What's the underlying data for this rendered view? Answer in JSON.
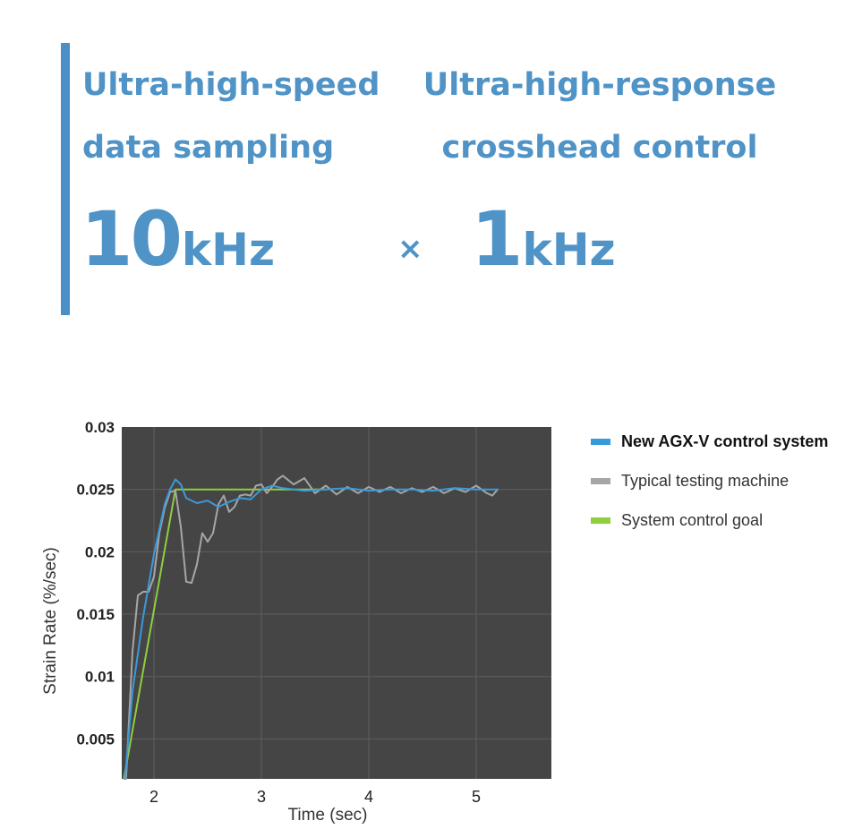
{
  "headline": {
    "left_feature": [
      "Ultra-high-speed",
      "data sampling"
    ],
    "right_feature": [
      "Ultra-high-response",
      "crosshead control"
    ],
    "left_value": {
      "number": "10",
      "unit": "kHz"
    },
    "operator": "×",
    "right_value": {
      "number": "1",
      "unit": "kHz"
    },
    "accent_color": "#4f93c7"
  },
  "chart_data": {
    "type": "line",
    "title": "",
    "xlabel": "Time (sec)",
    "ylabel": "Strain Rate (%/sec)",
    "xlim": [
      1.7,
      5.7
    ],
    "ylim": [
      0.0018,
      0.03
    ],
    "xticks": [
      2,
      3,
      4,
      5
    ],
    "xtick_labels": [
      "2",
      "3",
      "4",
      "5"
    ],
    "yticks": [
      0.005,
      0.01,
      0.015,
      0.02,
      0.025,
      0.03
    ],
    "ytick_labels": [
      "0.005",
      "0.01",
      "0.015",
      "0.02",
      "0.025",
      "0.03"
    ],
    "grid": true,
    "plot_background": "#454545",
    "legend_position": "right",
    "series": [
      {
        "name": "System control goal",
        "color": "#8fce3c",
        "x": [
          1.72,
          2.2,
          3.6
        ],
        "y": [
          0.0018,
          0.025,
          0.025
        ]
      },
      {
        "name": "Typical testing machine",
        "color": "#a6a6a6",
        "x": [
          1.74,
          1.8,
          1.85,
          1.9,
          1.95,
          2.0,
          2.05,
          2.1,
          2.15,
          2.2,
          2.25,
          2.3,
          2.35,
          2.4,
          2.45,
          2.5,
          2.55,
          2.6,
          2.65,
          2.7,
          2.75,
          2.8,
          2.85,
          2.9,
          2.95,
          3.0,
          3.05,
          3.1,
          3.15,
          3.2,
          3.3,
          3.4,
          3.5,
          3.6,
          3.7,
          3.8,
          3.9,
          4.0,
          4.1,
          4.2,
          4.3,
          4.4,
          4.5,
          4.6,
          4.7,
          4.8,
          4.9,
          5.0,
          5.1,
          5.15,
          5.2
        ],
        "y": [
          0.0018,
          0.012,
          0.0165,
          0.0168,
          0.0168,
          0.018,
          0.0215,
          0.0235,
          0.0248,
          0.0249,
          0.022,
          0.0176,
          0.0175,
          0.019,
          0.0215,
          0.0208,
          0.0215,
          0.0238,
          0.0245,
          0.0232,
          0.0236,
          0.0245,
          0.0246,
          0.0245,
          0.0253,
          0.0254,
          0.0247,
          0.0252,
          0.0258,
          0.0261,
          0.0254,
          0.0259,
          0.0247,
          0.0253,
          0.0246,
          0.0252,
          0.0247,
          0.0252,
          0.0248,
          0.0252,
          0.0247,
          0.0251,
          0.0248,
          0.0252,
          0.0247,
          0.0251,
          0.0248,
          0.0253,
          0.0247,
          0.0245,
          0.025
        ]
      },
      {
        "name": "New AGX-V control system",
        "color": "#3a9ad9",
        "x": [
          1.73,
          1.8,
          1.9,
          2.0,
          2.1,
          2.15,
          2.2,
          2.25,
          2.3,
          2.4,
          2.5,
          2.6,
          2.7,
          2.8,
          2.9,
          3.0,
          3.1,
          3.2,
          3.4,
          3.6,
          3.8,
          4.0,
          4.2,
          4.4,
          4.6,
          4.8,
          5.0,
          5.2
        ],
        "y": [
          0.0018,
          0.0088,
          0.0148,
          0.0198,
          0.0238,
          0.025,
          0.0258,
          0.0254,
          0.0243,
          0.0239,
          0.0241,
          0.0236,
          0.024,
          0.0243,
          0.0242,
          0.025,
          0.0253,
          0.0251,
          0.0249,
          0.025,
          0.0251,
          0.0249,
          0.025,
          0.025,
          0.0249,
          0.0251,
          0.025,
          0.025
        ]
      }
    ],
    "legend_order": [
      "New AGX-V control system",
      "Typical testing machine",
      "System control goal"
    ]
  }
}
